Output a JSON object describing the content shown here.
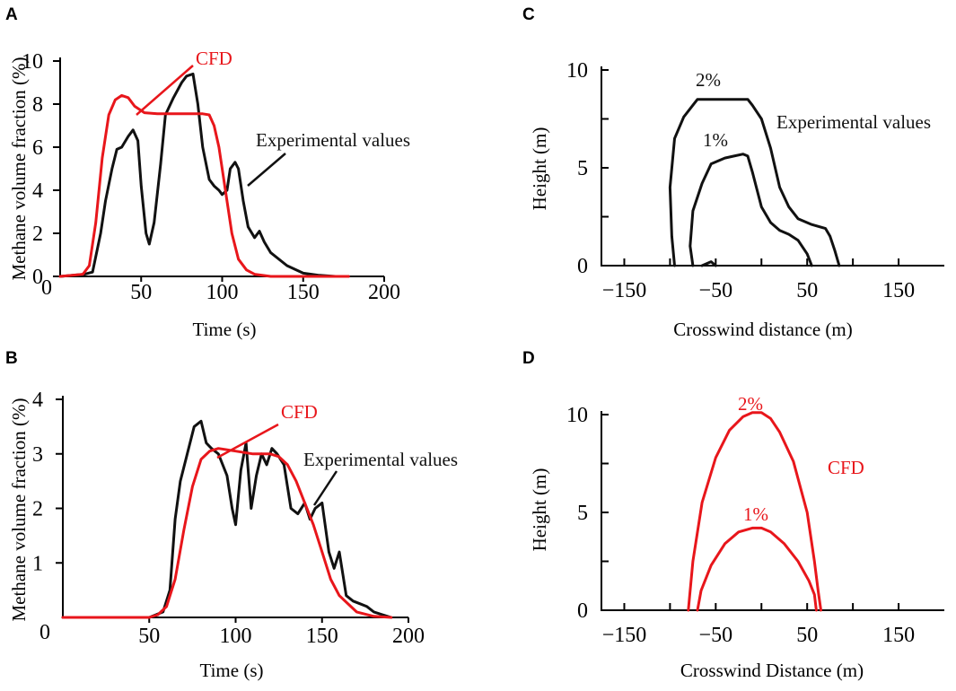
{
  "colors": {
    "experimental": "#111111",
    "cfd": "#e8161b"
  },
  "chart_data": [
    {
      "panel": "A",
      "type": "line",
      "xlabel": "Time (s)",
      "ylabel": "Methane volume fraction (%)",
      "xlim": [
        0,
        200
      ],
      "ylim": [
        0,
        10
      ],
      "xticks": [
        50,
        100,
        150,
        200
      ],
      "yticks": [
        0,
        2,
        4,
        6,
        8,
        10
      ],
      "origin_label": "0",
      "series": [
        {
          "name": "Experimental values",
          "x": [
            0,
            15,
            20,
            25,
            28,
            32,
            35,
            38,
            42,
            45,
            48,
            50,
            53,
            55,
            58,
            62,
            65,
            70,
            75,
            78,
            82,
            85,
            88,
            92,
            95,
            98,
            100,
            103,
            105,
            108,
            110,
            113,
            116,
            120,
            123,
            126,
            130,
            140,
            150,
            160,
            170,
            178
          ],
          "y": [
            0,
            0.1,
            0.2,
            2,
            3.5,
            5,
            5.9,
            6,
            6.5,
            6.8,
            6.3,
            4.2,
            2,
            1.5,
            2.5,
            5.2,
            7.5,
            8.3,
            9,
            9.3,
            9.4,
            8,
            6,
            4.5,
            4.2,
            4,
            3.8,
            4,
            5,
            5.3,
            5,
            3.5,
            2.3,
            1.8,
            2.1,
            1.6,
            1.1,
            0.5,
            0.15,
            0.05,
            0,
            0
          ]
        },
        {
          "name": "CFD",
          "x": [
            0,
            14,
            18,
            22,
            26,
            30,
            34,
            38,
            42,
            46,
            52,
            60,
            70,
            80,
            88,
            92,
            95,
            98,
            102,
            106,
            110,
            115,
            120,
            130,
            160,
            178
          ],
          "y": [
            0,
            0.1,
            0.5,
            2.5,
            5.5,
            7.5,
            8.2,
            8.4,
            8.3,
            7.9,
            7.6,
            7.55,
            7.55,
            7.55,
            7.55,
            7.5,
            7,
            6,
            4,
            2,
            0.8,
            0.3,
            0.1,
            0,
            0,
            0
          ]
        }
      ],
      "annotations": [
        {
          "text": "CFD",
          "series": "CFD"
        },
        {
          "text": "Experimental values",
          "series": "Experimental values"
        }
      ]
    },
    {
      "panel": "B",
      "type": "line",
      "xlabel": "Time (s)",
      "ylabel": "Methane volume fraction (%)",
      "xlim": [
        0,
        200
      ],
      "ylim": [
        0,
        4
      ],
      "xticks": [
        50,
        100,
        150,
        200
      ],
      "yticks": [
        1,
        2,
        3,
        4
      ],
      "origin_label": "0",
      "series": [
        {
          "name": "Experimental values",
          "x": [
            0,
            50,
            58,
            62,
            65,
            68,
            72,
            76,
            80,
            83,
            86,
            90,
            95,
            98,
            100,
            103,
            106,
            109,
            112,
            115,
            118,
            121,
            124,
            128,
            132,
            136,
            140,
            143,
            146,
            150,
            154,
            157,
            160,
            164,
            168,
            172,
            176,
            180,
            185,
            190
          ],
          "y": [
            0,
            0,
            0.1,
            0.5,
            1.8,
            2.5,
            3,
            3.5,
            3.6,
            3.2,
            3.1,
            3,
            2.6,
            2,
            1.7,
            2.7,
            3.2,
            2,
            2.6,
            3,
            2.8,
            3.1,
            3,
            2.8,
            2,
            1.9,
            2.1,
            1.8,
            2,
            2.1,
            1.2,
            0.9,
            1.2,
            0.4,
            0.3,
            0.25,
            0.2,
            0.1,
            0.05,
            0
          ]
        },
        {
          "name": "CFD",
          "x": [
            0,
            50,
            55,
            60,
            65,
            70,
            75,
            80,
            85,
            90,
            100,
            110,
            120,
            125,
            130,
            135,
            140,
            145,
            150,
            155,
            160,
            170,
            180,
            190
          ],
          "y": [
            0,
            0,
            0.05,
            0.2,
            0.7,
            1.6,
            2.4,
            2.9,
            3.05,
            3.1,
            3.05,
            3,
            3,
            2.95,
            2.8,
            2.5,
            2.1,
            1.7,
            1.2,
            0.7,
            0.4,
            0.1,
            0.02,
            0
          ]
        }
      ],
      "annotations": [
        {
          "text": "CFD",
          "series": "CFD"
        },
        {
          "text": "Experimental values",
          "series": "Experimental values"
        }
      ]
    },
    {
      "panel": "C",
      "type": "line",
      "xlabel": "Crosswind distance (m)",
      "ylabel": "Height (m)",
      "xlim": [
        -175,
        200
      ],
      "ylim": [
        0,
        10
      ],
      "xticks": [
        -150,
        -50,
        50,
        150
      ],
      "yticks": [
        0,
        5,
        10
      ],
      "xtick_labels": [
        "−150",
        "−50",
        "50",
        "150"
      ],
      "series": [
        {
          "name": "2% contour",
          "x": [
            -95,
            -98,
            -100,
            -95,
            -85,
            -75,
            -70,
            -55,
            -35,
            -15,
            -10,
            0,
            10,
            20,
            30,
            40,
            55,
            70,
            75,
            80,
            85
          ],
          "y": [
            0,
            1.5,
            4,
            6.5,
            7.6,
            8.2,
            8.5,
            8.5,
            8.5,
            8.5,
            8.2,
            7.5,
            6,
            4,
            3,
            2.4,
            2.1,
            1.9,
            1.5,
            0.8,
            0
          ]
        },
        {
          "name": "1% contour",
          "x": [
            -75,
            -78,
            -75,
            -65,
            -55,
            -40,
            -30,
            -20,
            -15,
            -10,
            0,
            10,
            20,
            30,
            40,
            50,
            55
          ],
          "y": [
            0,
            1,
            2.8,
            4.2,
            5.2,
            5.5,
            5.6,
            5.7,
            5.6,
            4.8,
            3,
            2.2,
            1.8,
            1.6,
            1.3,
            0.6,
            0
          ]
        },
        {
          "name": "1% small lobe",
          "x": [
            -65,
            -55,
            -50
          ],
          "y": [
            0,
            0.2,
            0
          ]
        }
      ],
      "annotations": [
        {
          "text": "2%",
          "series": "2% contour"
        },
        {
          "text": "1%",
          "series": "1% contour"
        },
        {
          "text": "Experimental values",
          "series": "2% contour"
        }
      ]
    },
    {
      "panel": "D",
      "type": "line",
      "xlabel": "Crosswind Distance (m)",
      "ylabel": "Height (m)",
      "xlim": [
        -175,
        200
      ],
      "ylim": [
        0,
        10
      ],
      "xticks": [
        -150,
        -50,
        50,
        150
      ],
      "yticks": [
        0,
        5,
        10
      ],
      "xtick_labels": [
        "−150",
        "−50",
        "50",
        "150"
      ],
      "series": [
        {
          "name": "2% contour",
          "x": [
            -80,
            -75,
            -65,
            -50,
            -35,
            -20,
            -10,
            0,
            10,
            20,
            35,
            50,
            58,
            62,
            65
          ],
          "y": [
            0,
            2.5,
            5.5,
            7.8,
            9.2,
            9.9,
            10.1,
            10.1,
            9.8,
            9.1,
            7.6,
            5,
            2.5,
            1,
            0
          ],
          "color": "#e8161b"
        },
        {
          "name": "1% contour",
          "x": [
            -70,
            -66,
            -55,
            -40,
            -25,
            -10,
            0,
            10,
            25,
            40,
            52,
            58,
            60
          ],
          "y": [
            0,
            1,
            2.3,
            3.4,
            4,
            4.2,
            4.2,
            4,
            3.4,
            2.5,
            1.5,
            0.8,
            0
          ],
          "color": "#e8161b"
        }
      ],
      "annotations": [
        {
          "text": "2%",
          "series": "2% contour"
        },
        {
          "text": "1%",
          "series": "1% contour"
        },
        {
          "text": "CFD",
          "series": "2% contour"
        }
      ]
    }
  ]
}
